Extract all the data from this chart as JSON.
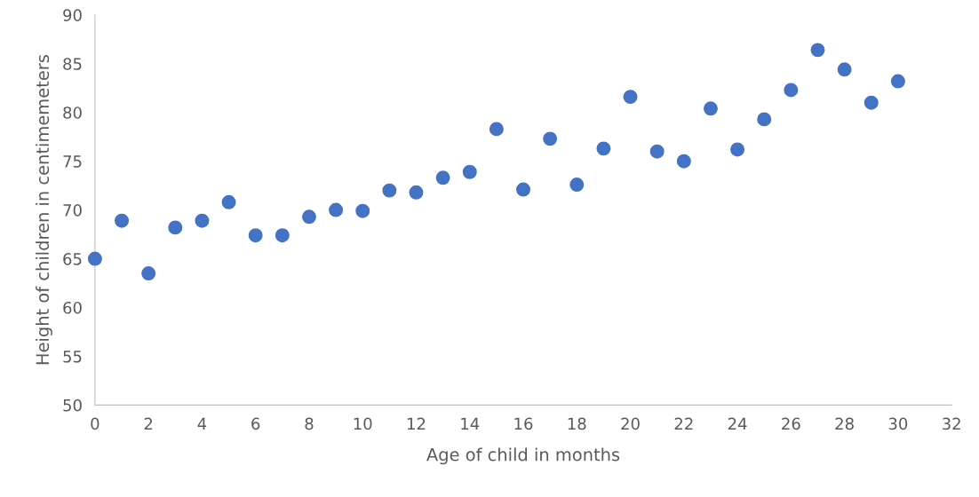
{
  "chart_data": {
    "type": "scatter",
    "xlabel": "Age of child in months",
    "ylabel": "Height of children in centimemeters",
    "x": [
      0,
      1,
      2,
      3,
      4,
      5,
      6,
      7,
      8,
      9,
      10,
      11,
      12,
      13,
      14,
      15,
      16,
      17,
      18,
      19,
      20,
      21,
      22,
      23,
      24,
      25,
      26,
      27,
      28,
      29,
      30
    ],
    "series": [
      {
        "color": "#4472c4",
        "values": [
          65.0,
          68.9,
          63.5,
          68.2,
          68.9,
          70.8,
          67.4,
          67.4,
          69.3,
          70.0,
          69.9,
          72.0,
          71.8,
          73.3,
          73.9,
          78.3,
          72.1,
          77.3,
          72.6,
          76.3,
          81.6,
          76.0,
          75.0,
          80.4,
          76.2,
          79.3,
          82.3,
          86.4,
          84.4,
          81.0,
          83.2
        ]
      }
    ],
    "xlim": [
      0,
      32
    ],
    "xticks": [
      0,
      2,
      4,
      6,
      8,
      10,
      12,
      14,
      16,
      18,
      20,
      22,
      24,
      26,
      28,
      30,
      32
    ],
    "ylim": [
      50,
      90
    ],
    "yticks": [
      50,
      55,
      60,
      65,
      70,
      75,
      80,
      85,
      90
    ],
    "marker": "circle",
    "grid": false
  }
}
